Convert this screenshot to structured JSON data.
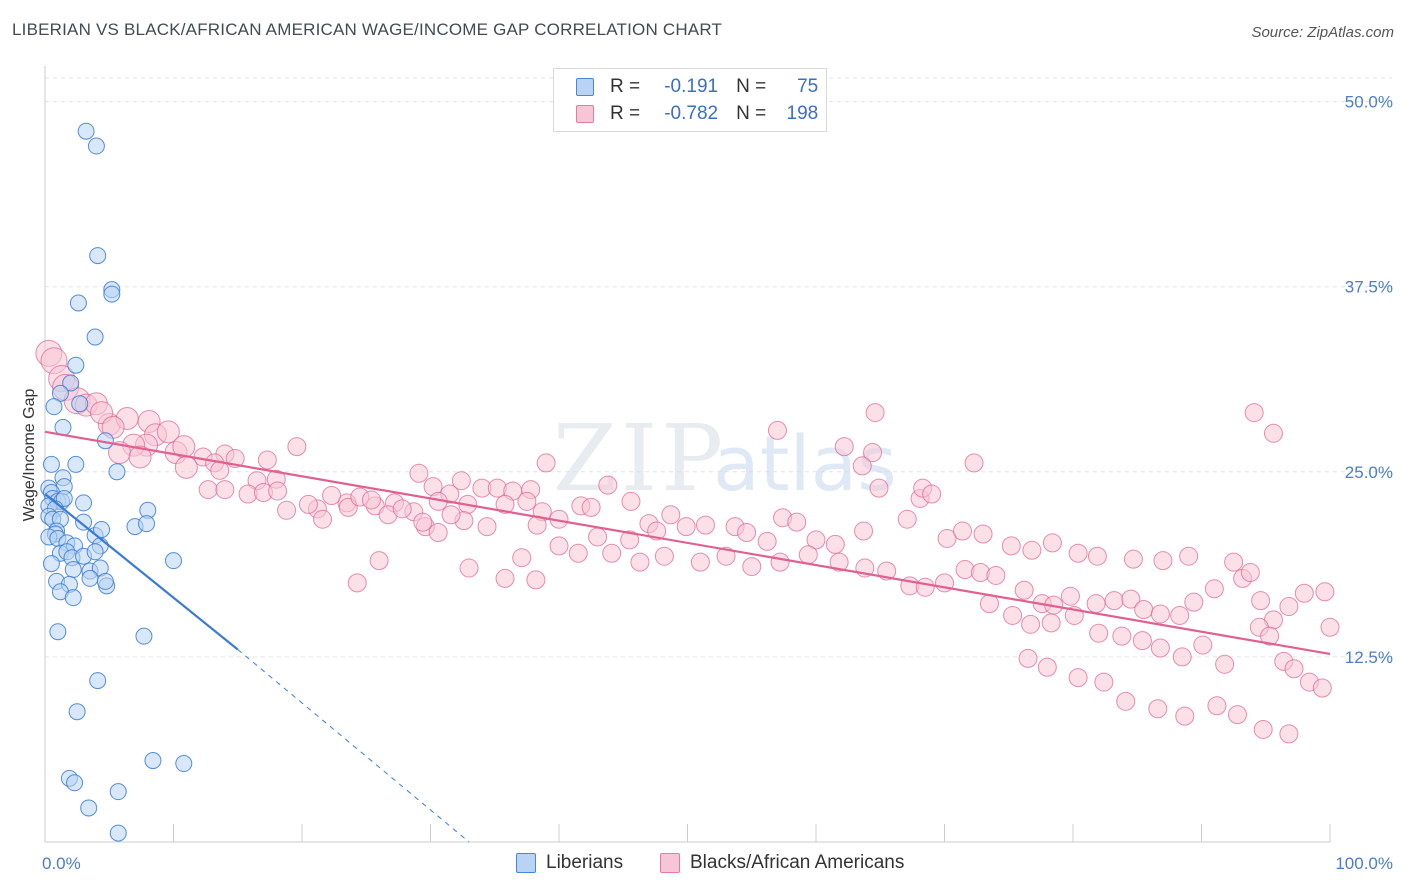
{
  "title": "LIBERIAN VS BLACK/AFRICAN AMERICAN WAGE/INCOME GAP CORRELATION CHART",
  "source": "Source: ZipAtlas.com",
  "watermark": {
    "zip": "ZIP",
    "atlas": "atlas"
  },
  "legend": {
    "r_label": "R =",
    "n_label": "N =",
    "rows": [
      {
        "r": "-0.191",
        "n": "75",
        "color": "#4a86d8",
        "fill": "#b8d3f4"
      },
      {
        "r": "-0.782",
        "n": "198",
        "color": "#e87aa0",
        "fill": "#f7c6d6"
      }
    ]
  },
  "chart_data": {
    "type": "scatter",
    "title": "LIBERIAN VS BLACK/AFRICAN AMERICAN WAGE/INCOME GAP CORRELATION CHART",
    "xlabel": "",
    "ylabel": "Wage/Income Gap",
    "xlim": [
      0,
      100
    ],
    "ylim": [
      0,
      52
    ],
    "x_tick_labels": [
      "0.0%",
      "100.0%"
    ],
    "y_ticks": [
      12.5,
      25.0,
      37.5,
      50.0
    ],
    "y_tick_labels": [
      "12.5%",
      "25.0%",
      "37.5%",
      "50.0%"
    ],
    "grid": true,
    "series": [
      {
        "name": "Liberians",
        "color": "#3a7bd5",
        "fill": "#b8d3f4",
        "trend": {
          "x0": 0,
          "y0": 23.5,
          "x1": 15,
          "y1": 13.0,
          "dash_to_x": 33,
          "dash_to_y": 0
        },
        "points": [
          [
            3.2,
            48.0
          ],
          [
            4.0,
            47.0
          ],
          [
            4.1,
            39.6
          ],
          [
            5.2,
            37.3
          ],
          [
            5.2,
            37.0
          ],
          [
            2.6,
            36.4
          ],
          [
            3.9,
            34.1
          ],
          [
            2.4,
            32.2
          ],
          [
            2.0,
            31.0
          ],
          [
            1.2,
            30.3
          ],
          [
            2.7,
            29.6
          ],
          [
            0.7,
            29.4
          ],
          [
            1.4,
            28.0
          ],
          [
            4.7,
            27.1
          ],
          [
            0.5,
            25.5
          ],
          [
            2.4,
            25.5
          ],
          [
            5.6,
            25.0
          ],
          [
            1.4,
            24.6
          ],
          [
            1.5,
            24.0
          ],
          [
            0.3,
            23.9
          ],
          [
            0.5,
            23.6
          ],
          [
            0.6,
            23.2
          ],
          [
            1.0,
            23.0
          ],
          [
            1.3,
            23.0
          ],
          [
            1.5,
            23.2
          ],
          [
            0.3,
            22.7
          ],
          [
            0.8,
            22.5
          ],
          [
            3.0,
            22.9
          ],
          [
            8.0,
            22.4
          ],
          [
            0.3,
            22.0
          ],
          [
            0.6,
            21.8
          ],
          [
            1.2,
            21.8
          ],
          [
            3.0,
            21.6
          ],
          [
            7.0,
            21.3
          ],
          [
            7.9,
            21.5
          ],
          [
            0.9,
            21.0
          ],
          [
            0.8,
            20.8
          ],
          [
            3.9,
            20.7
          ],
          [
            4.4,
            21.1
          ],
          [
            0.3,
            20.6
          ],
          [
            1.0,
            20.5
          ],
          [
            1.7,
            20.2
          ],
          [
            2.3,
            20.0
          ],
          [
            4.3,
            20.0
          ],
          [
            1.2,
            19.5
          ],
          [
            1.7,
            19.6
          ],
          [
            2.1,
            19.2
          ],
          [
            3.0,
            19.3
          ],
          [
            3.9,
            19.6
          ],
          [
            10.0,
            19.0
          ],
          [
            0.5,
            18.8
          ],
          [
            2.2,
            18.4
          ],
          [
            3.5,
            18.3
          ],
          [
            4.3,
            18.5
          ],
          [
            0.9,
            17.6
          ],
          [
            1.9,
            17.4
          ],
          [
            3.5,
            17.8
          ],
          [
            4.8,
            17.3
          ],
          [
            4.7,
            17.6
          ],
          [
            1.2,
            16.9
          ],
          [
            2.2,
            16.5
          ],
          [
            1.0,
            14.2
          ],
          [
            7.7,
            13.9
          ],
          [
            4.1,
            10.9
          ],
          [
            2.5,
            8.8
          ],
          [
            8.4,
            5.5
          ],
          [
            10.8,
            5.3
          ],
          [
            1.9,
            4.3
          ],
          [
            2.3,
            4.0
          ],
          [
            5.7,
            3.4
          ],
          [
            3.4,
            2.3
          ],
          [
            5.7,
            0.6
          ]
        ]
      },
      {
        "name": "Blacks/African Americans",
        "color": "#e0608f",
        "fill": "#f7c6d6",
        "trend": {
          "x0": 0,
          "y0": 27.7,
          "x1": 100,
          "y1": 12.7
        },
        "points": [
          [
            0.3,
            33.0
          ],
          [
            0.7,
            32.5
          ],
          [
            1.3,
            31.3
          ],
          [
            1.6,
            30.7
          ],
          [
            2.5,
            29.8
          ],
          [
            3.2,
            29.5
          ],
          [
            4.0,
            29.6
          ],
          [
            5.0,
            28.2
          ],
          [
            6.4,
            28.6
          ],
          [
            8.1,
            28.4
          ],
          [
            4.4,
            29.0
          ],
          [
            5.3,
            28.0
          ],
          [
            8.6,
            27.5
          ],
          [
            9.6,
            27.7
          ],
          [
            7.9,
            26.8
          ],
          [
            6.9,
            26.8
          ],
          [
            10.2,
            26.3
          ],
          [
            10.8,
            26.7
          ],
          [
            12.3,
            26.0
          ],
          [
            5.8,
            26.3
          ],
          [
            7.4,
            26.0
          ],
          [
            14.0,
            26.2
          ],
          [
            14.8,
            25.9
          ],
          [
            13.2,
            25.6
          ],
          [
            17.3,
            25.8
          ],
          [
            19.6,
            26.7
          ],
          [
            11.0,
            25.3
          ],
          [
            13.6,
            25.1
          ],
          [
            16.5,
            24.4
          ],
          [
            18.0,
            24.5
          ],
          [
            12.7,
            23.8
          ],
          [
            14.0,
            23.8
          ],
          [
            15.8,
            23.5
          ],
          [
            17.0,
            23.6
          ],
          [
            18.1,
            23.7
          ],
          [
            18.8,
            22.4
          ],
          [
            21.2,
            22.5
          ],
          [
            23.5,
            22.9
          ],
          [
            25.7,
            22.7
          ],
          [
            27.2,
            22.9
          ],
          [
            29.1,
            24.9
          ],
          [
            30.2,
            24.0
          ],
          [
            31.5,
            23.5
          ],
          [
            32.4,
            24.4
          ],
          [
            34.0,
            23.9
          ],
          [
            35.2,
            23.9
          ],
          [
            36.4,
            23.7
          ],
          [
            30.6,
            23.0
          ],
          [
            32.9,
            22.8
          ],
          [
            28.7,
            22.3
          ],
          [
            29.6,
            21.3
          ],
          [
            32.6,
            21.7
          ],
          [
            34.4,
            21.3
          ],
          [
            20.5,
            22.8
          ],
          [
            21.6,
            21.8
          ],
          [
            22.3,
            23.4
          ],
          [
            23.6,
            22.6
          ],
          [
            24.5,
            23.3
          ],
          [
            25.4,
            23.1
          ],
          [
            26.7,
            22.1
          ],
          [
            27.8,
            22.5
          ],
          [
            29.4,
            21.6
          ],
          [
            30.6,
            20.9
          ],
          [
            31.6,
            22.1
          ],
          [
            35.8,
            22.8
          ],
          [
            37.8,
            23.8
          ],
          [
            38.7,
            22.3
          ],
          [
            39.0,
            25.6
          ],
          [
            40.0,
            21.8
          ],
          [
            41.7,
            22.7
          ],
          [
            42.5,
            22.6
          ],
          [
            43.8,
            24.1
          ],
          [
            45.6,
            23.0
          ],
          [
            47.0,
            21.5
          ],
          [
            47.6,
            21.0
          ],
          [
            48.7,
            22.1
          ],
          [
            49.9,
            21.3
          ],
          [
            51.4,
            21.4
          ],
          [
            53.7,
            21.3
          ],
          [
            54.6,
            20.9
          ],
          [
            56.2,
            20.3
          ],
          [
            57.4,
            21.9
          ],
          [
            58.5,
            21.6
          ],
          [
            60.0,
            20.4
          ],
          [
            61.5,
            20.1
          ],
          [
            63.7,
            21.0
          ],
          [
            64.4,
            26.3
          ],
          [
            63.6,
            25.4
          ],
          [
            64.9,
            23.9
          ],
          [
            67.1,
            21.8
          ],
          [
            68.1,
            23.2
          ],
          [
            68.3,
            23.9
          ],
          [
            69.0,
            23.5
          ],
          [
            70.2,
            20.5
          ],
          [
            71.4,
            21.0
          ],
          [
            72.3,
            25.6
          ],
          [
            73.0,
            20.8
          ],
          [
            75.2,
            20.0
          ],
          [
            76.8,
            19.7
          ],
          [
            78.4,
            20.2
          ],
          [
            80.4,
            19.5
          ],
          [
            81.9,
            19.3
          ],
          [
            84.7,
            19.1
          ],
          [
            87.0,
            19.0
          ],
          [
            89.0,
            19.3
          ],
          [
            62.2,
            26.7
          ],
          [
            64.6,
            29.0
          ],
          [
            57.0,
            27.8
          ],
          [
            40.0,
            20.0
          ],
          [
            41.5,
            19.5
          ],
          [
            43.0,
            20.6
          ],
          [
            44.1,
            19.5
          ],
          [
            45.5,
            20.4
          ],
          [
            46.3,
            18.9
          ],
          [
            48.2,
            19.3
          ],
          [
            51.0,
            18.9
          ],
          [
            53.0,
            19.3
          ],
          [
            55.0,
            18.6
          ],
          [
            57.2,
            18.9
          ],
          [
            59.4,
            19.4
          ],
          [
            61.8,
            18.9
          ],
          [
            63.8,
            18.5
          ],
          [
            65.5,
            18.3
          ],
          [
            67.3,
            17.3
          ],
          [
            68.5,
            17.2
          ],
          [
            70.0,
            17.5
          ],
          [
            71.6,
            18.4
          ],
          [
            72.8,
            18.2
          ],
          [
            74.0,
            18.0
          ],
          [
            76.2,
            17.0
          ],
          [
            77.6,
            16.1
          ],
          [
            78.5,
            16.0
          ],
          [
            79.8,
            16.6
          ],
          [
            81.8,
            16.1
          ],
          [
            83.2,
            16.3
          ],
          [
            84.5,
            16.4
          ],
          [
            85.5,
            15.7
          ],
          [
            86.8,
            15.4
          ],
          [
            88.3,
            15.3
          ],
          [
            89.4,
            16.2
          ],
          [
            91.0,
            17.1
          ],
          [
            93.2,
            17.8
          ],
          [
            94.6,
            16.3
          ],
          [
            95.6,
            15.0
          ],
          [
            96.8,
            15.9
          ],
          [
            98.0,
            16.8
          ],
          [
            99.6,
            16.9
          ],
          [
            92.5,
            18.9
          ],
          [
            93.8,
            18.2
          ],
          [
            38.2,
            17.7
          ],
          [
            37.1,
            19.2
          ],
          [
            37.5,
            23.0
          ],
          [
            38.3,
            21.4
          ],
          [
            26.0,
            19.0
          ],
          [
            24.3,
            17.5
          ],
          [
            33.0,
            18.5
          ],
          [
            35.8,
            17.8
          ],
          [
            73.5,
            16.1
          ],
          [
            75.3,
            15.3
          ],
          [
            76.7,
            14.7
          ],
          [
            78.3,
            14.8
          ],
          [
            80.1,
            15.3
          ],
          [
            82.0,
            14.1
          ],
          [
            83.8,
            13.9
          ],
          [
            85.4,
            13.6
          ],
          [
            86.8,
            13.1
          ],
          [
            88.5,
            12.5
          ],
          [
            90.1,
            13.3
          ],
          [
            91.8,
            12.0
          ],
          [
            94.5,
            14.5
          ],
          [
            95.3,
            13.9
          ],
          [
            96.4,
            12.2
          ],
          [
            97.2,
            11.7
          ],
          [
            98.4,
            10.8
          ],
          [
            99.4,
            10.4
          ],
          [
            100.0,
            14.5
          ],
          [
            76.5,
            12.4
          ],
          [
            78.0,
            11.8
          ],
          [
            80.4,
            11.1
          ],
          [
            82.4,
            10.8
          ],
          [
            84.1,
            9.5
          ],
          [
            86.6,
            9.0
          ],
          [
            88.7,
            8.5
          ],
          [
            91.2,
            9.2
          ],
          [
            92.8,
            8.6
          ],
          [
            94.8,
            7.6
          ],
          [
            96.8,
            7.3
          ],
          [
            94.1,
            29.0
          ],
          [
            95.6,
            27.6
          ]
        ]
      }
    ]
  },
  "bottom_legend": [
    {
      "label": "Liberians",
      "color": "#4a86d8",
      "fill": "#b8d3f4"
    },
    {
      "label": "Blacks/African Americans",
      "color": "#e87aa0",
      "fill": "#f7c6d6"
    }
  ]
}
